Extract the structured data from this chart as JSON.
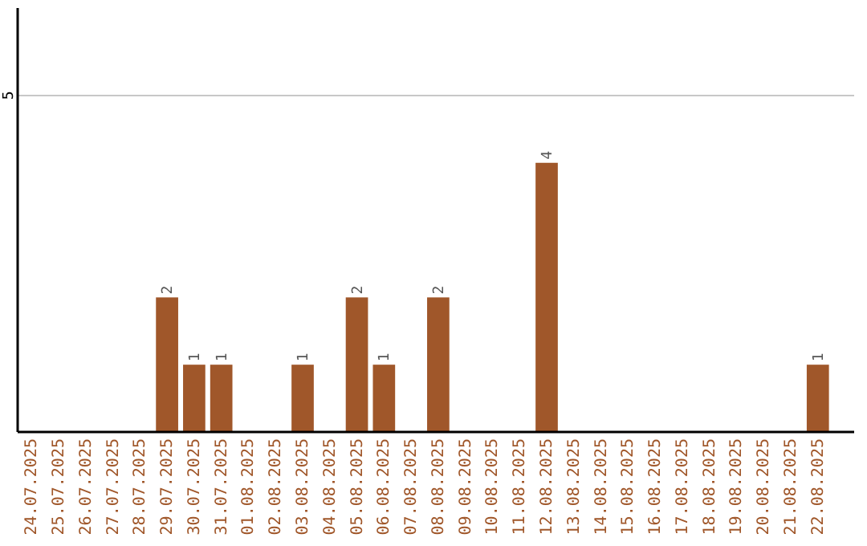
{
  "chart_data": {
    "type": "bar",
    "categories": [
      "24.07.2025",
      "25.07.2025",
      "26.07.2025",
      "27.07.2025",
      "28.07.2025",
      "29.07.2025",
      "30.07.2025",
      "31.07.2025",
      "01.08.2025",
      "02.08.2025",
      "03.08.2025",
      "04.08.2025",
      "05.08.2025",
      "06.08.2025",
      "07.08.2025",
      "08.08.2025",
      "09.08.2025",
      "10.08.2025",
      "11.08.2025",
      "12.08.2025",
      "13.08.2025",
      "14.08.2025",
      "15.08.2025",
      "16.08.2025",
      "17.08.2025",
      "18.08.2025",
      "19.08.2025",
      "20.08.2025",
      "21.08.2025",
      "22.08.2025"
    ],
    "values": [
      0,
      0,
      0,
      0,
      0,
      2,
      1,
      1,
      0,
      0,
      1,
      0,
      2,
      1,
      0,
      2,
      0,
      0,
      0,
      4,
      0,
      0,
      0,
      0,
      0,
      0,
      0,
      0,
      0,
      1
    ],
    "value_labels": [
      null,
      null,
      null,
      null,
      null,
      "2",
      "1",
      "1",
      null,
      null,
      "1",
      null,
      "2",
      "1",
      null,
      "2",
      null,
      null,
      null,
      "4",
      null,
      null,
      null,
      null,
      null,
      null,
      null,
      null,
      null,
      "1"
    ],
    "color": "#a0572a",
    "ylim": [
      0,
      6.3
    ],
    "yticks": [
      5
    ],
    "grid": "y"
  }
}
